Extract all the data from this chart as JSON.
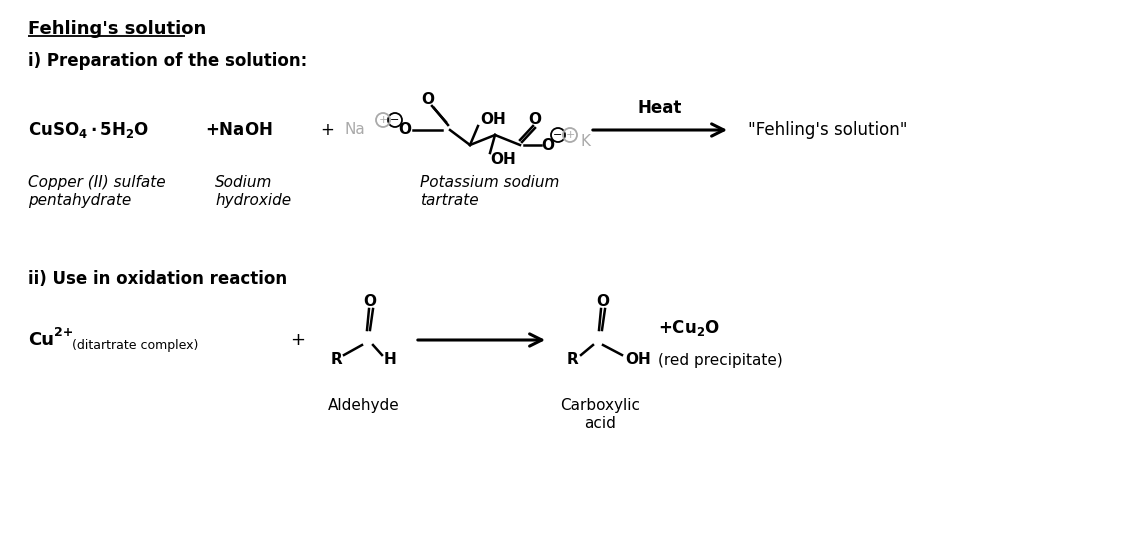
{
  "title": "Fehling's solution",
  "bg_color": "#ffffff",
  "text_color": "#000000",
  "gray_color": "#aaaaaa",
  "section1_header": "i) Preparation of the solution:",
  "section2_header": "ii) Use in oxidation reaction",
  "heat_label": "Heat",
  "fehling_product": "\"Fehling's solution\"",
  "copper_label_italic1": "Copper (II) sulfate",
  "copper_label_italic2": "pentahydrate",
  "sodium_label_italic1": "Sodium",
  "sodium_label_italic2": "hydroxide",
  "tartrate_label_italic1": "Potassium sodium",
  "tartrate_label_italic2": "tartrate",
  "ditartrate": "(ditartrate complex)",
  "aldehyde_label": "Aldehyde",
  "carboxylic_label1": "Carboxylic",
  "carboxylic_label2": "acid",
  "cu2o_label": "+ Cu₂O",
  "red_precip": "(red precipitate)",
  "figwidth": 11.4,
  "figheight": 5.48,
  "dpi": 100
}
